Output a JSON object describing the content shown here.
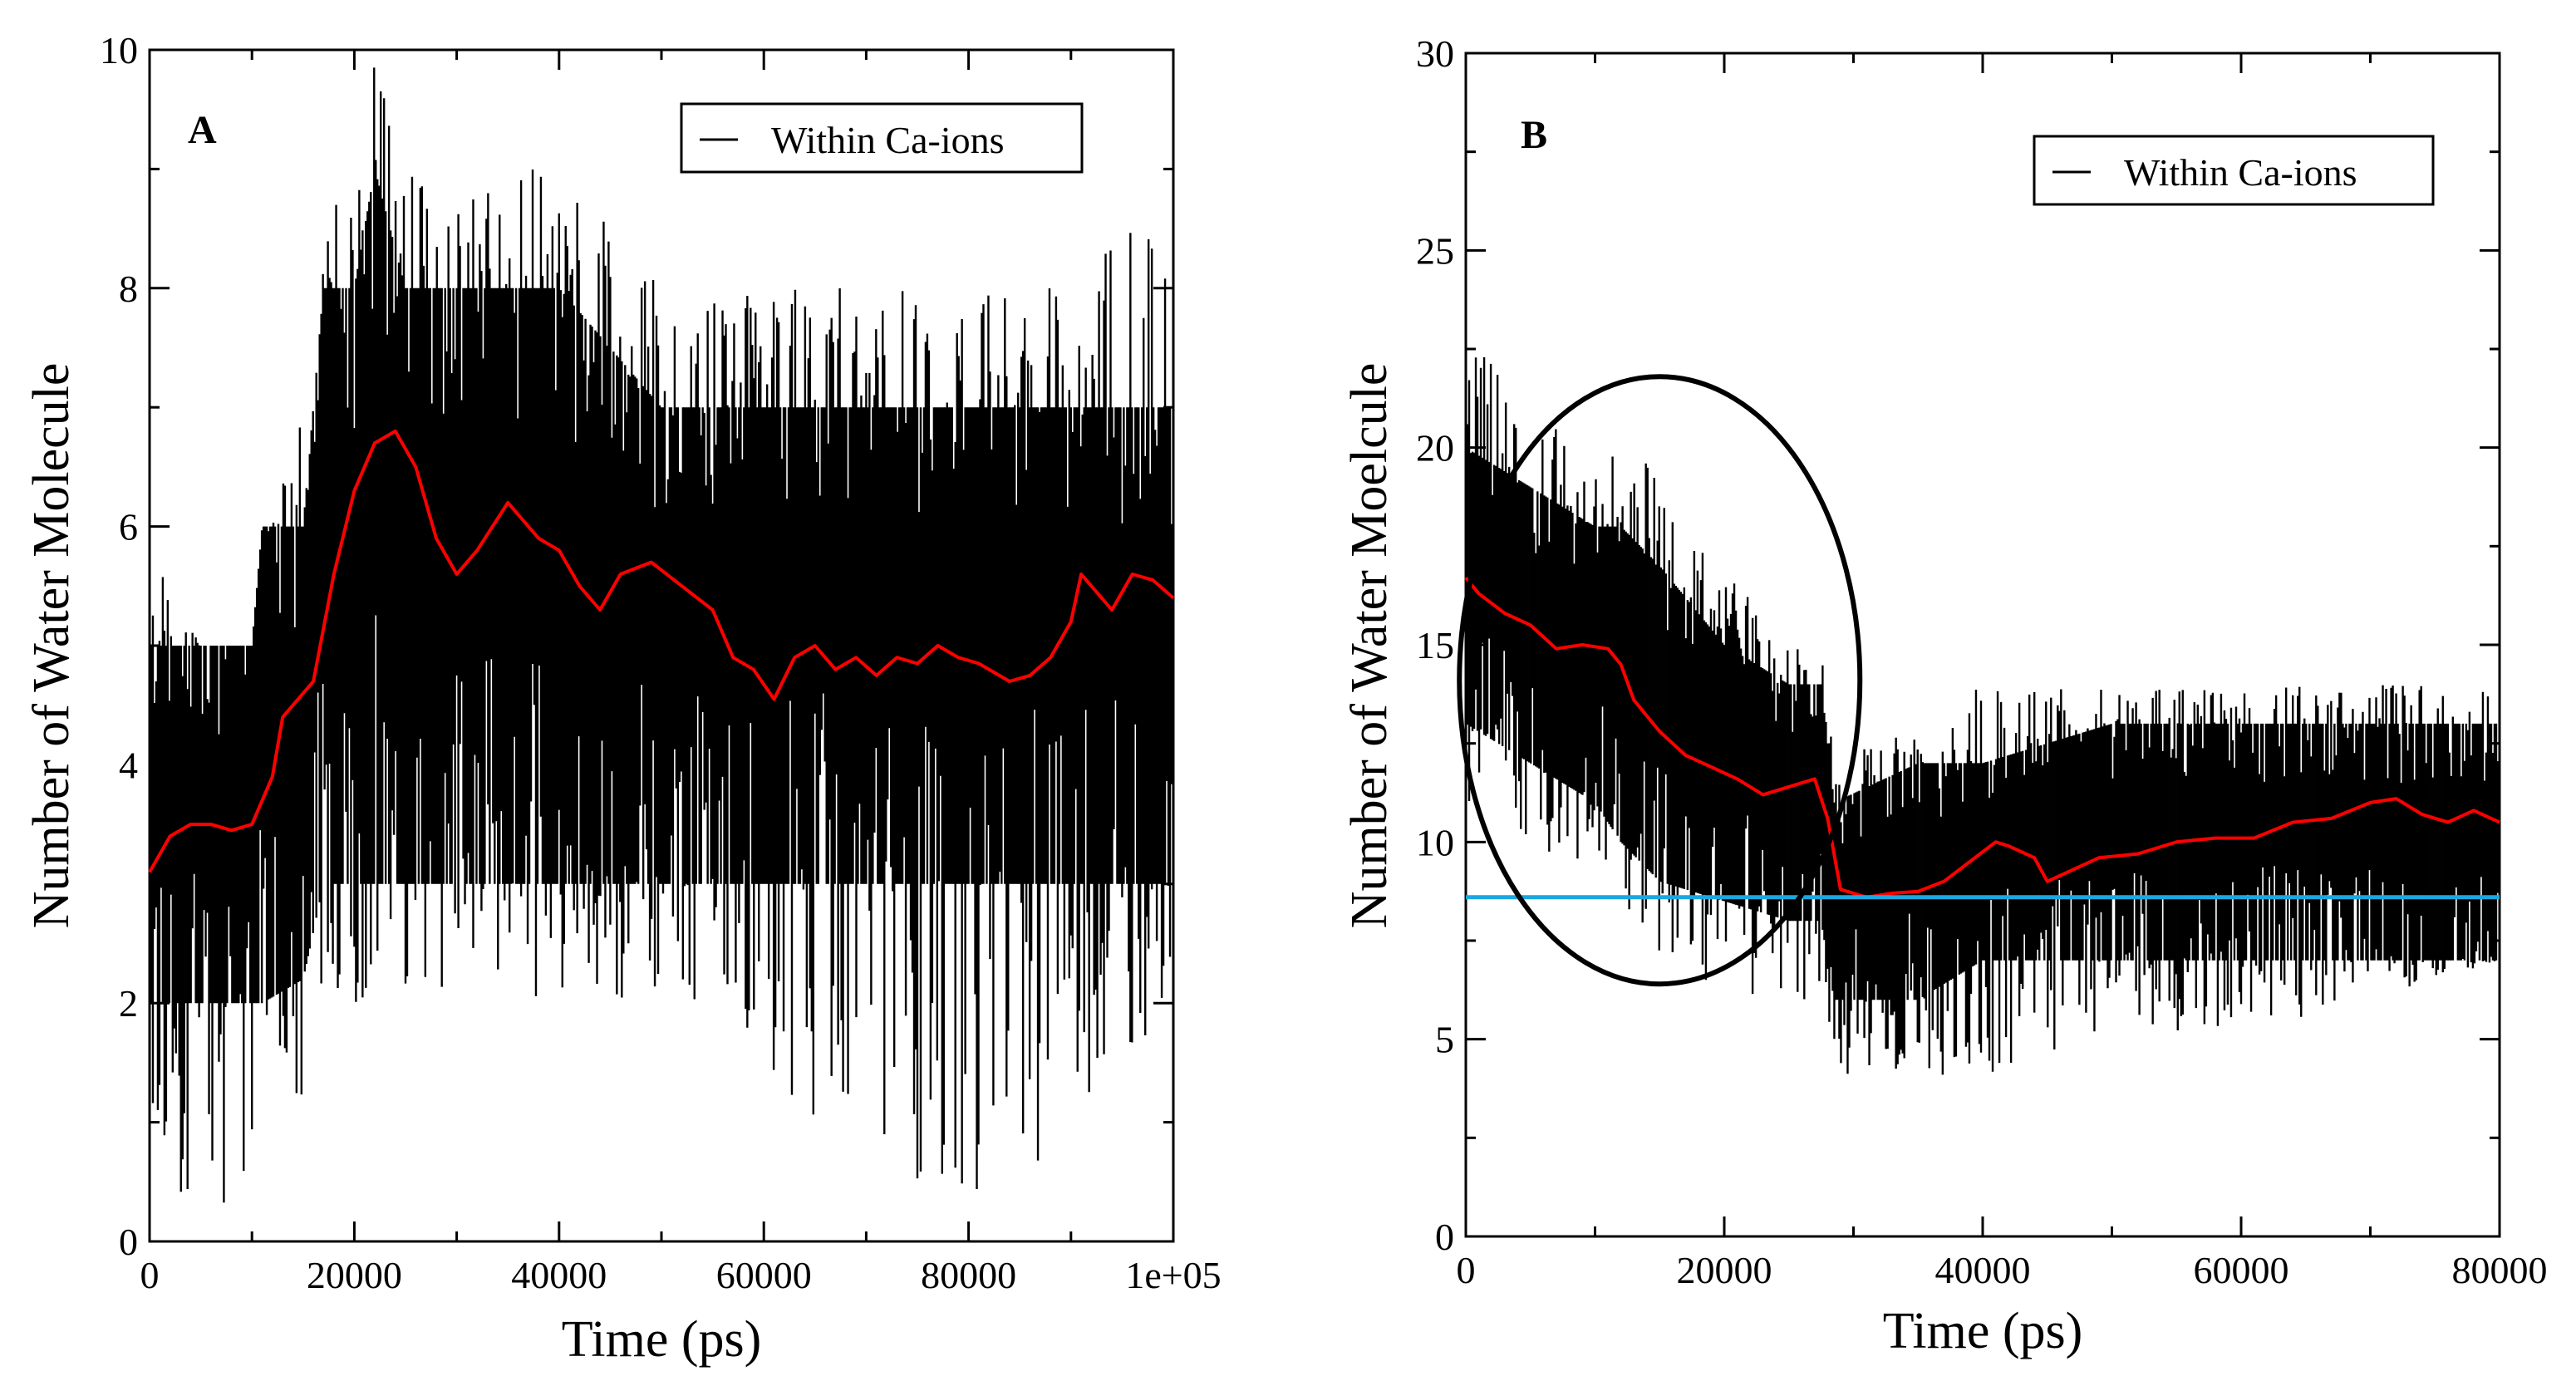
{
  "chart_data": [
    {
      "panel": "A",
      "type": "line",
      "xlabel": "Time (ps)",
      "ylabel": "Number of Water Molecule",
      "xlim": [
        0,
        100000
      ],
      "ylim": [
        0,
        10
      ],
      "xticks": [
        0,
        20000,
        40000,
        60000,
        80000,
        100000
      ],
      "xtick_labels": [
        "0",
        "20000",
        "40000",
        "60000",
        "80000",
        "1e+05"
      ],
      "yticks": [
        0,
        2,
        4,
        6,
        8,
        10
      ],
      "ytick_labels": [
        "0",
        "2",
        "4",
        "6",
        "8",
        "10"
      ],
      "legend": {
        "label": "Within Ca-ions",
        "position": "top-right"
      },
      "colors": {
        "raw": "#000000",
        "average": "#ff0000"
      },
      "raw_band": {
        "name": "Within Ca-ions",
        "x": [
          0,
          5000,
          10000,
          11000,
          15000,
          17000,
          20000,
          22000,
          25000,
          30000,
          40000,
          50000,
          60000,
          70000,
          80000,
          90000,
          100000
        ],
        "low": [
          2,
          2,
          2,
          2,
          2.2,
          3,
          3,
          3,
          3,
          3,
          3,
          3,
          3,
          3,
          3,
          3,
          3
        ],
        "high": [
          5,
          5,
          5,
          6,
          6,
          8,
          8,
          9,
          8,
          8,
          8,
          7,
          7,
          7,
          7,
          7,
          7
        ],
        "spike_low": [
          1,
          0,
          0.7,
          1,
          1,
          2,
          2,
          2,
          2,
          2,
          2,
          2,
          1,
          1,
          0,
          1,
          2
        ],
        "spike_high": [
          6,
          5,
          5,
          6,
          7,
          9,
          9,
          10,
          9,
          9,
          9,
          8,
          8,
          8,
          8,
          8,
          9
        ]
      },
      "series": [
        {
          "name": "running average",
          "x": [
            0,
            2000,
            4000,
            6000,
            8000,
            10000,
            12000,
            13000,
            14000,
            16000,
            18000,
            20000,
            22000,
            24000,
            26000,
            28000,
            30000,
            32000,
            35000,
            38000,
            40000,
            42000,
            44000,
            46000,
            49000,
            52000,
            55000,
            57000,
            59000,
            61000,
            63000,
            65000,
            67000,
            69000,
            71000,
            73000,
            75000,
            77000,
            79000,
            81000,
            84000,
            86000,
            88000,
            90000,
            91000,
            92000,
            94000,
            96000,
            98000,
            100000
          ],
          "values": [
            3.1,
            3.4,
            3.5,
            3.5,
            3.45,
            3.5,
            3.9,
            4.4,
            4.5,
            4.7,
            5.6,
            6.3,
            6.7,
            6.8,
            6.5,
            5.9,
            5.6,
            5.8,
            6.2,
            5.9,
            5.8,
            5.5,
            5.3,
            5.6,
            5.7,
            5.5,
            5.3,
            4.9,
            4.8,
            4.55,
            4.9,
            5.0,
            4.8,
            4.9,
            4.75,
            4.9,
            4.85,
            5.0,
            4.9,
            4.85,
            4.7,
            4.75,
            4.9,
            5.2,
            5.6,
            5.5,
            5.3,
            5.6,
            5.55,
            5.4
          ]
        }
      ]
    },
    {
      "panel": "B",
      "type": "line",
      "xlabel": "Time (ps)",
      "ylabel": "Number of Water Moelcule",
      "xlim": [
        0,
        80000
      ],
      "ylim": [
        0,
        30
      ],
      "xticks": [
        0,
        20000,
        40000,
        60000,
        80000
      ],
      "xtick_labels": [
        "0",
        "20000",
        "40000",
        "60000",
        "80000"
      ],
      "yticks": [
        0,
        5,
        10,
        15,
        20,
        25,
        30
      ],
      "ytick_labels": [
        "0",
        "5",
        "10",
        "15",
        "20",
        "25",
        "30"
      ],
      "legend": {
        "label": "Within Ca-ions",
        "position": "top-right"
      },
      "colors": {
        "raw": "#000000",
        "average": "#ff0000",
        "reference": "#1ba7e0",
        "ellipse": "#000000"
      },
      "raw_band": {
        "name": "Within Ca-ions",
        "x": [
          0,
          5000,
          10000,
          12000,
          15000,
          20000,
          25000,
          27500,
          28500,
          35000,
          40000,
          50000,
          60000,
          70000,
          80000
        ],
        "low": [
          13,
          12,
          11,
          10,
          9,
          8.5,
          8,
          8,
          6,
          6,
          7,
          7,
          7,
          7,
          7
        ],
        "high": [
          20,
          19,
          18,
          18,
          17,
          15,
          14,
          14,
          11,
          12,
          12,
          13,
          13,
          13,
          13
        ],
        "spike_low": [
          11,
          10,
          9,
          8,
          7,
          6,
          6,
          6,
          4,
          4,
          4,
          5,
          5,
          6,
          7
        ],
        "spike_high": [
          23,
          21,
          20,
          21,
          19,
          17,
          15,
          15,
          12,
          13,
          14,
          14,
          14,
          14,
          14
        ]
      },
      "series": [
        {
          "name": "running average",
          "x": [
            0,
            1000,
            3000,
            5000,
            7000,
            9000,
            11000,
            12000,
            13000,
            15000,
            17000,
            19000,
            21000,
            23000,
            25000,
            26000,
            27000,
            28000,
            29000,
            31000,
            33000,
            35000,
            37000,
            39000,
            41000,
            42000,
            44000,
            45000,
            47000,
            49000,
            52000,
            55000,
            58000,
            61000,
            64000,
            67000,
            70000,
            72000,
            74000,
            76000,
            78000,
            80000
          ],
          "values": [
            16.7,
            16.3,
            15.8,
            15.5,
            14.9,
            15.0,
            14.9,
            14.5,
            13.6,
            12.8,
            12.2,
            11.9,
            11.6,
            11.2,
            11.4,
            11.5,
            11.6,
            10.6,
            8.8,
            8.6,
            8.7,
            8.75,
            9.0,
            9.5,
            10.0,
            9.9,
            9.6,
            9.0,
            9.3,
            9.6,
            9.7,
            10.0,
            10.1,
            10.1,
            10.5,
            10.6,
            11.0,
            11.1,
            10.7,
            10.5,
            10.8,
            10.5
          ]
        },
        {
          "name": "reference level",
          "x": [
            0,
            80000
          ],
          "values": [
            8.6,
            8.6
          ]
        }
      ],
      "annotations": [
        {
          "type": "ellipse",
          "center": [
            15000,
            14.1
          ],
          "x_radius": 15500,
          "y_radius": 7.7
        }
      ]
    }
  ]
}
